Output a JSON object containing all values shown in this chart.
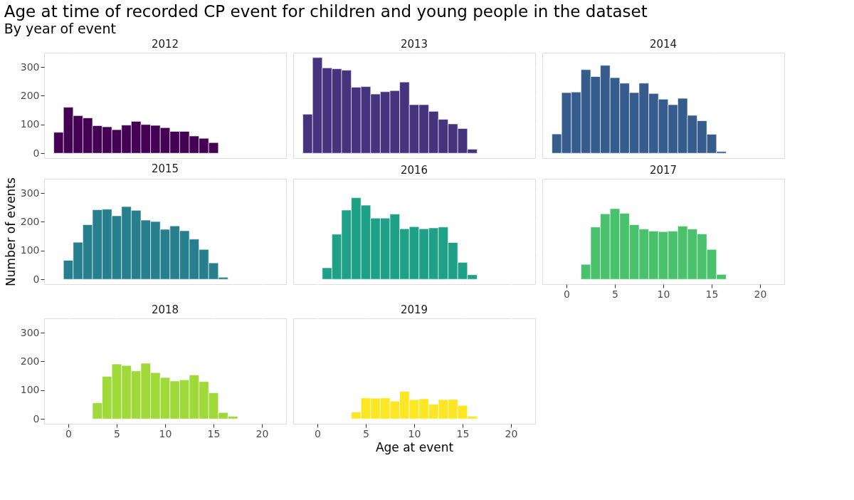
{
  "chart_data": [
    {
      "type": "other",
      "title": "Age at time of recorded CP event for children and young people in the dataset",
      "subtitle": "By year of event"
    },
    {
      "type": "histogram",
      "title": "2012",
      "color": "#440154",
      "bins": [
        -1.5,
        -0.5,
        0.5,
        1.5,
        2.5,
        3.5,
        4.5,
        5.5,
        6.5,
        7.5,
        8.5,
        9.5,
        10.5,
        11.5,
        12.5,
        13.5,
        14.5,
        15.5
      ],
      "values": [
        73,
        160,
        131,
        123,
        96,
        92,
        82,
        98,
        111,
        100,
        97,
        89,
        76,
        76,
        60,
        52,
        37
      ],
      "xlim": [
        -2.5,
        22.5
      ],
      "ylim": [
        -17,
        350
      ],
      "xticks": [
        0,
        5,
        10,
        15,
        20
      ],
      "yticks": [
        0,
        100,
        200,
        300
      ],
      "grid": true,
      "tick_labels": "y"
    },
    {
      "type": "histogram",
      "title": "2013",
      "color": "#46337e",
      "bins": [
        -1.5,
        -0.5,
        0.5,
        1.5,
        2.5,
        3.5,
        4.5,
        5.5,
        6.5,
        7.5,
        8.5,
        9.5,
        10.5,
        11.5,
        12.5,
        13.5,
        14.5,
        15.5,
        16.5
      ],
      "values": [
        136,
        333,
        297,
        294,
        289,
        230,
        232,
        206,
        214,
        218,
        248,
        169,
        169,
        146,
        118,
        102,
        86,
        14
      ],
      "xlim": [
        -2.5,
        22.5
      ],
      "ylim": [
        -17,
        350
      ],
      "xticks": [
        0,
        5,
        10,
        15,
        20
      ],
      "yticks": [
        0,
        100,
        200,
        300
      ],
      "grid": true,
      "tick_labels": false
    },
    {
      "type": "histogram",
      "title": "2014",
      "color": "#365c8d",
      "bins": [
        -1.5,
        -0.5,
        0.5,
        1.5,
        2.5,
        3.5,
        4.5,
        5.5,
        6.5,
        7.5,
        8.5,
        9.5,
        10.5,
        11.5,
        12.5,
        13.5,
        14.5,
        15.5,
        16.5
      ],
      "values": [
        67,
        211,
        213,
        291,
        267,
        306,
        263,
        244,
        211,
        244,
        208,
        188,
        169,
        191,
        132,
        113,
        66,
        6
      ],
      "xlim": [
        -2.5,
        22.5
      ],
      "ylim": [
        -17,
        350
      ],
      "xticks": [
        0,
        5,
        10,
        15,
        20
      ],
      "yticks": [
        0,
        100,
        200,
        300
      ],
      "grid": true,
      "tick_labels": false
    },
    {
      "type": "histogram",
      "title": "2015",
      "color": "#277f8e",
      "ylabel": "Number of events",
      "bins": [
        -0.5,
        0.5,
        1.5,
        2.5,
        3.5,
        4.5,
        5.5,
        6.5,
        7.5,
        8.5,
        9.5,
        10.5,
        11.5,
        12.5,
        13.5,
        14.5,
        15.5,
        16.5
      ],
      "values": [
        66,
        129,
        190,
        242,
        244,
        221,
        253,
        240,
        206,
        201,
        174,
        186,
        169,
        140,
        104,
        57,
        7
      ],
      "xlim": [
        -2.5,
        22.5
      ],
      "ylim": [
        -17,
        350
      ],
      "xticks": [
        0,
        5,
        10,
        15,
        20
      ],
      "yticks": [
        0,
        100,
        200,
        300
      ],
      "grid": true,
      "tick_labels": "y"
    },
    {
      "type": "histogram",
      "title": "2016",
      "color": "#1fa187",
      "bins": [
        0.5,
        1.5,
        2.5,
        3.5,
        4.5,
        5.5,
        6.5,
        7.5,
        8.5,
        9.5,
        10.5,
        11.5,
        12.5,
        13.5,
        14.5,
        15.5,
        16.5
      ],
      "values": [
        40,
        157,
        241,
        284,
        258,
        213,
        213,
        227,
        176,
        183,
        176,
        179,
        182,
        128,
        59,
        16
      ],
      "xlim": [
        -2.5,
        22.5
      ],
      "ylim": [
        -17,
        350
      ],
      "xticks": [
        0,
        5,
        10,
        15,
        20
      ],
      "yticks": [
        0,
        100,
        200,
        300
      ],
      "grid": true,
      "tick_labels": false
    },
    {
      "type": "histogram",
      "title": "2017",
      "color": "#4ac16d",
      "bins": [
        1.5,
        2.5,
        3.5,
        4.5,
        5.5,
        6.5,
        7.5,
        8.5,
        9.5,
        10.5,
        11.5,
        12.5,
        13.5,
        14.5,
        15.5,
        16.5
      ],
      "values": [
        52,
        182,
        228,
        246,
        230,
        190,
        175,
        168,
        166,
        168,
        185,
        175,
        158,
        104,
        17
      ],
      "xlim": [
        -2.5,
        22.5
      ],
      "ylim": [
        -17,
        350
      ],
      "xticks": [
        0,
        5,
        10,
        15,
        20
      ],
      "yticks": [
        0,
        100,
        200,
        300
      ],
      "grid": true,
      "tick_labels": "x"
    },
    {
      "type": "histogram",
      "title": "2018",
      "color": "#9fda3a",
      "bins": [
        2.5,
        3.5,
        4.5,
        5.5,
        6.5,
        7.5,
        8.5,
        9.5,
        10.5,
        11.5,
        12.5,
        13.5,
        14.5,
        15.5,
        16.5,
        17.5
      ],
      "values": [
        56,
        148,
        191,
        186,
        167,
        194,
        161,
        144,
        132,
        136,
        153,
        130,
        91,
        22,
        9
      ],
      "xlim": [
        -2.5,
        22.5
      ],
      "ylim": [
        -17,
        350
      ],
      "xticks": [
        0,
        5,
        10,
        15,
        20
      ],
      "yticks": [
        0,
        100,
        200,
        300
      ],
      "grid": true
    },
    {
      "type": "histogram",
      "title": "2019",
      "color": "#fde725",
      "xlabel": "Age at event",
      "bins": [
        3.5,
        4.5,
        5.5,
        6.5,
        7.5,
        8.5,
        9.5,
        10.5,
        11.5,
        12.5,
        13.5,
        14.5,
        15.5,
        16.5
      ],
      "values": [
        24,
        73,
        72,
        73,
        62,
        96,
        67,
        70,
        51,
        67,
        68,
        47,
        9
      ],
      "xlim": [
        -2.5,
        22.5
      ],
      "ylim": [
        -17,
        350
      ],
      "xticks": [
        0,
        5,
        10,
        15,
        20
      ],
      "yticks": [
        0,
        100,
        200,
        300
      ],
      "grid": true,
      "tick_labels": "x"
    }
  ]
}
